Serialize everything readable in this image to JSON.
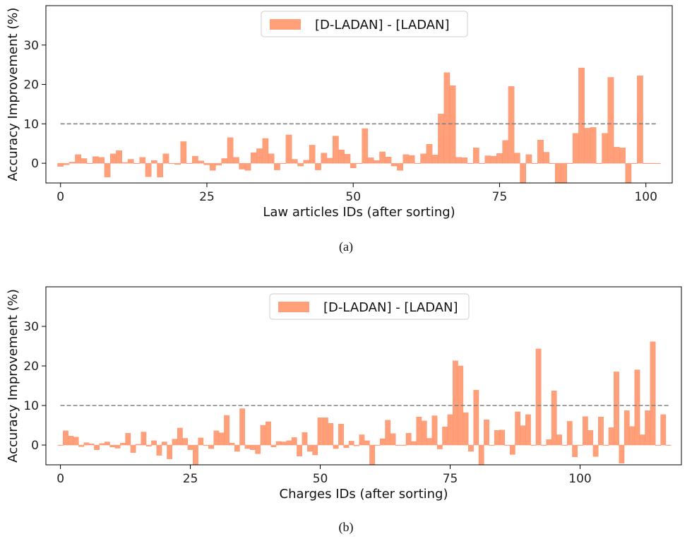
{
  "colors": {
    "bar": "#FFA07A",
    "bar_edge": "#FF8C66",
    "threshold": "#808080",
    "axis": "#000000"
  },
  "chart_data": [
    {
      "type": "bar",
      "caption": "(a)",
      "title": "",
      "xlabel": "Law articles IDs (after sorting)",
      "ylabel": "Accuracy Improvement (%)",
      "xlim": [
        -2.5,
        104.5
      ],
      "ylim": [
        -5,
        40
      ],
      "xticks": [
        "0",
        "25",
        "50",
        "75",
        "100"
      ],
      "xtick_values": [
        0,
        25,
        50,
        75,
        100
      ],
      "yticks": [
        "0",
        "10",
        "20",
        "30"
      ],
      "ytick_values": [
        0,
        10,
        20,
        30
      ],
      "threshold": 10,
      "legend": "[D-LADAN] - [LADAN]",
      "legend_position": "upper center",
      "series": [
        {
          "name": "[D-LADAN] - [LADAN]",
          "x": [
            0,
            1,
            2,
            3,
            4,
            5,
            6,
            7,
            8,
            9,
            10,
            11,
            12,
            13,
            14,
            15,
            16,
            17,
            18,
            19,
            20,
            21,
            22,
            23,
            24,
            25,
            26,
            27,
            28,
            29,
            30,
            31,
            32,
            33,
            34,
            35,
            36,
            37,
            38,
            39,
            40,
            41,
            42,
            43,
            44,
            45,
            46,
            47,
            48,
            49,
            50,
            51,
            52,
            53,
            54,
            55,
            56,
            57,
            58,
            59,
            60,
            61,
            62,
            63,
            64,
            65,
            66,
            67,
            68,
            69,
            70,
            71,
            72,
            73,
            74,
            75,
            76,
            77,
            78,
            79,
            80,
            81,
            82,
            83,
            84,
            85,
            86,
            87,
            88,
            89,
            90,
            91,
            92,
            93,
            94,
            95,
            96,
            97,
            98,
            99,
            100,
            101,
            102
          ],
          "values": [
            -0.8,
            -0.4,
            0.3,
            2.2,
            1.2,
            0,
            1.7,
            1.5,
            -3.5,
            2.4,
            3.2,
            0.2,
            1.0,
            0,
            1.5,
            -3.4,
            0.7,
            -3.5,
            2.4,
            0,
            -0.3,
            5.5,
            0,
            1.8,
            0.6,
            -0.4,
            -1.8,
            -0.5,
            1.2,
            6.5,
            1.5,
            -1.5,
            -1.8,
            2.7,
            3.7,
            6.3,
            2.4,
            -1.7,
            0,
            7.2,
            1.0,
            -0.7,
            0.8,
            4.6,
            -1.7,
            2.6,
            1.3,
            6.9,
            3.4,
            2.3,
            -1.2,
            0,
            8.8,
            1.4,
            0.7,
            2.9,
            1.6,
            -0.7,
            -1.8,
            2.2,
            2.0,
            0,
            2.4,
            4.8,
            2.1,
            12.5,
            23,
            19.7,
            1.5,
            1.4,
            0,
            3.9,
            0,
            1.9,
            1.8,
            2.5,
            5.8,
            19.5,
            2.6,
            -5,
            2.2,
            0,
            5.9,
            2.8,
            0,
            -5,
            -5,
            0,
            7.6,
            24.2,
            8.9,
            9.1,
            0,
            7.6,
            21.8,
            4.1,
            3.9,
            -5,
            0,
            22.2,
            0,
            0,
            0
          ]
        }
      ]
    },
    {
      "type": "bar",
      "caption": "(b)",
      "title": "",
      "xlabel": "Charges IDs (after sorting)",
      "ylabel": "Accuracy Improvement (%)",
      "xlim": [
        -2.8,
        119.5
      ],
      "ylim": [
        -5,
        40
      ],
      "xticks": [
        "0",
        "25",
        "50",
        "75",
        "100"
      ],
      "xtick_values": [
        0,
        25,
        50,
        75,
        100
      ],
      "yticks": [
        "0",
        "10",
        "20",
        "30"
      ],
      "ytick_values": [
        0,
        10,
        20,
        30
      ],
      "threshold": 10,
      "legend": "[D-LADAN] - [LADAN]",
      "legend_position": "upper center",
      "series": [
        {
          "name": "[D-LADAN] - [LADAN]",
          "x": [
            0,
            1,
            2,
            3,
            4,
            5,
            6,
            7,
            8,
            9,
            10,
            11,
            12,
            13,
            14,
            15,
            16,
            17,
            18,
            19,
            20,
            21,
            22,
            23,
            24,
            25,
            26,
            27,
            28,
            29,
            30,
            31,
            32,
            33,
            34,
            35,
            36,
            37,
            38,
            39,
            40,
            41,
            42,
            43,
            44,
            45,
            46,
            47,
            48,
            49,
            50,
            51,
            52,
            53,
            54,
            55,
            56,
            57,
            58,
            59,
            60,
            61,
            62,
            63,
            64,
            65,
            66,
            67,
            68,
            69,
            70,
            71,
            72,
            73,
            74,
            75,
            76,
            77,
            78,
            79,
            80,
            81,
            82,
            83,
            84,
            85,
            86,
            87,
            88,
            89,
            90,
            91,
            92,
            93,
            94,
            95,
            96,
            97,
            98,
            99,
            100,
            101,
            102,
            103,
            104,
            105,
            106,
            107,
            108,
            109,
            110,
            111,
            112,
            113,
            114,
            115,
            116,
            117
          ],
          "values": [
            0,
            3.6,
            2.3,
            2.0,
            -0.4,
            0.6,
            0.3,
            -1.2,
            0.4,
            0.8,
            -0.5,
            -0.8,
            0.5,
            3.0,
            -1.9,
            0.2,
            3.3,
            -0.3,
            1.1,
            -2.6,
            0.8,
            -3.5,
            1.5,
            4.3,
            1.7,
            -1.2,
            -5,
            1.8,
            0,
            -0.9,
            3.6,
            3.1,
            7.5,
            0.5,
            -1.6,
            9.2,
            -0.9,
            -1.2,
            -2.2,
            5.0,
            5.9,
            -0.5,
            0.9,
            0.8,
            1.1,
            1.9,
            -2.8,
            3.2,
            -1.6,
            -2.5,
            6.9,
            6.9,
            5.5,
            -0.9,
            5.3,
            -0.7,
            1.0,
            -0.2,
            2.6,
            1.1,
            -5,
            0,
            1.6,
            6.3,
            2.9,
            0,
            0,
            3.0,
            0.9,
            7.1,
            6.1,
            1.7,
            7.4,
            -1.0,
            4.6,
            7.7,
            21.3,
            20.0,
            8.2,
            -1.6,
            13.9,
            -5,
            6.4,
            0,
            3.7,
            3.8,
            0,
            -2.4,
            8.4,
            4.9,
            7.7,
            0,
            24.3,
            0,
            1.4,
            13.7,
            2.6,
            0,
            6.0,
            -3.0,
            0,
            7.2,
            3.7,
            -2.9,
            7.1,
            0,
            4.4,
            18.5,
            -4.6,
            8.7,
            4.7,
            19.0,
            2.6,
            8.7,
            26.1,
            0,
            7.7,
            0
          ]
        }
      ]
    }
  ]
}
